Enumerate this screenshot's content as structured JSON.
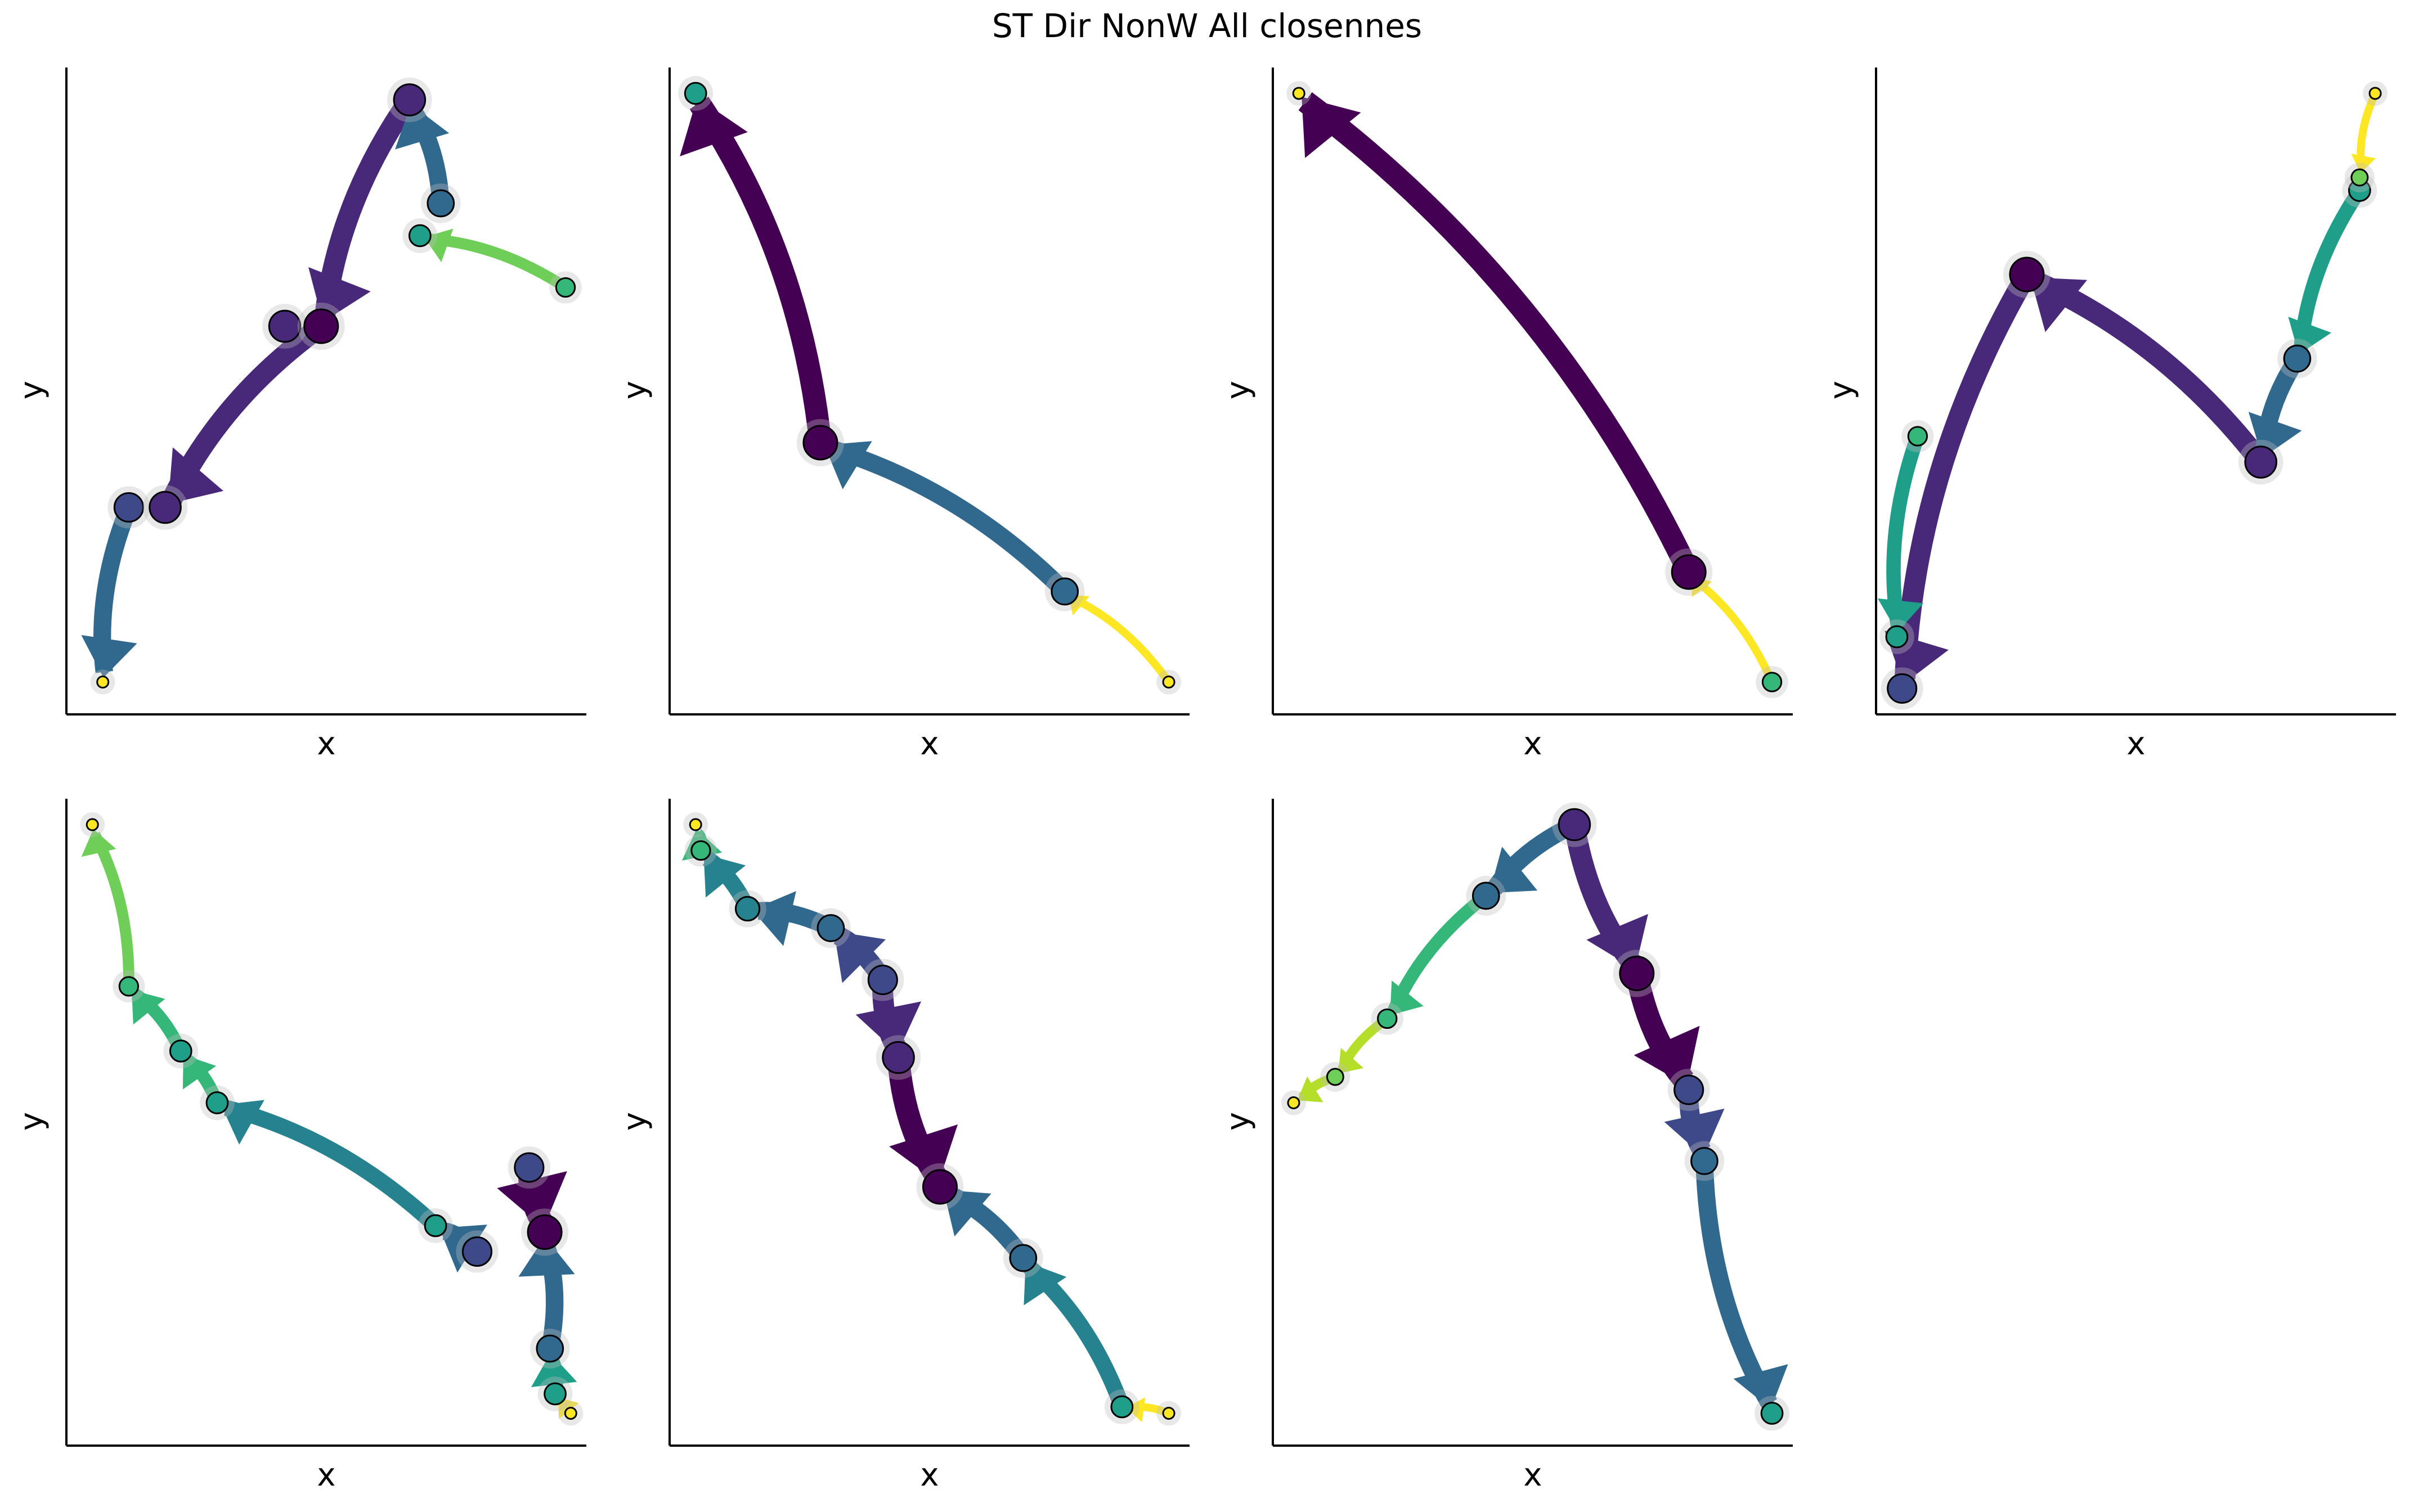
{
  "title": "ST Dir NonW All closennes",
  "colors": {
    "viridis": [
      "#440154",
      "#482878",
      "#3e4989",
      "#31688e",
      "#26828e",
      "#1f9e89",
      "#35b779",
      "#6ece58",
      "#b5de2b",
      "#fde725"
    ],
    "node_stroke": "#000000",
    "halo": "#bdbdbd"
  },
  "chart_data": [
    {
      "type": "scatter",
      "xlabel": "x",
      "ylabel": "y",
      "xlim": [
        0,
        1
      ],
      "ylim": [
        0,
        1
      ],
      "grid": false,
      "points": [
        {
          "x": 0.07,
          "y": 0.05,
          "c": 9
        },
        {
          "x": 0.12,
          "y": 0.32,
          "c": 2
        },
        {
          "x": 0.19,
          "y": 0.32,
          "c": 1
        },
        {
          "x": 0.42,
          "y": 0.6,
          "c": 1
        },
        {
          "x": 0.49,
          "y": 0.6,
          "c": 0
        },
        {
          "x": 0.66,
          "y": 0.95,
          "c": 1
        },
        {
          "x": 0.72,
          "y": 0.79,
          "c": 3
        },
        {
          "x": 0.68,
          "y": 0.74,
          "c": 5
        },
        {
          "x": 0.96,
          "y": 0.66,
          "c": 6
        }
      ],
      "edges": [
        {
          "from": 5,
          "to": 4,
          "c": 1
        },
        {
          "from": 4,
          "to": 2,
          "c": 1
        },
        {
          "from": 1,
          "to": 0,
          "c": 3
        },
        {
          "from": 6,
          "to": 5,
          "c": 3
        },
        {
          "from": 8,
          "to": 7,
          "c": 7
        },
        {
          "from": 0,
          "to": 0,
          "c": 9
        }
      ]
    },
    {
      "type": "scatter",
      "xlabel": "x",
      "ylabel": "y",
      "xlim": [
        0,
        1
      ],
      "ylim": [
        0,
        1
      ],
      "grid": false,
      "points": [
        {
          "x": 0.05,
          "y": 0.96,
          "c": 5
        },
        {
          "x": 0.29,
          "y": 0.42,
          "c": 0
        },
        {
          "x": 0.76,
          "y": 0.19,
          "c": 3
        },
        {
          "x": 0.96,
          "y": 0.05,
          "c": 9
        }
      ],
      "edges": [
        {
          "from": 1,
          "to": 0,
          "c": 0
        },
        {
          "from": 2,
          "to": 1,
          "c": 3
        },
        {
          "from": 3,
          "to": 2,
          "c": 9
        }
      ]
    },
    {
      "type": "scatter",
      "xlabel": "x",
      "ylabel": "y",
      "xlim": [
        0,
        1
      ],
      "ylim": [
        0,
        1
      ],
      "grid": false,
      "points": [
        {
          "x": 0.05,
          "y": 0.96,
          "c": 9
        },
        {
          "x": 0.8,
          "y": 0.22,
          "c": 0
        },
        {
          "x": 0.96,
          "y": 0.05,
          "c": 6
        }
      ],
      "edges": [
        {
          "from": 1,
          "to": 0,
          "c": 0
        },
        {
          "from": 2,
          "to": 1,
          "c": 9
        }
      ]
    },
    {
      "type": "scatter",
      "xlabel": "x",
      "ylabel": "y",
      "xlim": [
        0,
        1
      ],
      "ylim": [
        0,
        1
      ],
      "grid": false,
      "points": [
        {
          "x": 0.05,
          "y": 0.04,
          "c": 2
        },
        {
          "x": 0.04,
          "y": 0.12,
          "c": 5
        },
        {
          "x": 0.08,
          "y": 0.43,
          "c": 6
        },
        {
          "x": 0.29,
          "y": 0.68,
          "c": 0
        },
        {
          "x": 0.74,
          "y": 0.39,
          "c": 1
        },
        {
          "x": 0.81,
          "y": 0.55,
          "c": 3
        },
        {
          "x": 0.93,
          "y": 0.81,
          "c": 5
        },
        {
          "x": 0.93,
          "y": 0.83,
          "c": 7
        },
        {
          "x": 0.96,
          "y": 0.96,
          "c": 9
        }
      ],
      "edges": [
        {
          "from": 3,
          "to": 0,
          "c": 1
        },
        {
          "from": 4,
          "to": 3,
          "c": 1
        },
        {
          "from": 5,
          "to": 4,
          "c": 3
        },
        {
          "from": 6,
          "to": 5,
          "c": 5
        },
        {
          "from": 8,
          "to": 7,
          "c": 9
        },
        {
          "from": 2,
          "to": 1,
          "c": 5
        }
      ]
    },
    {
      "type": "scatter",
      "xlabel": "x",
      "ylabel": "y",
      "xlim": [
        0,
        1
      ],
      "ylim": [
        0,
        1
      ],
      "grid": false,
      "points": [
        {
          "x": 0.05,
          "y": 0.96,
          "c": 9
        },
        {
          "x": 0.12,
          "y": 0.71,
          "c": 6
        },
        {
          "x": 0.22,
          "y": 0.61,
          "c": 5
        },
        {
          "x": 0.29,
          "y": 0.53,
          "c": 5
        },
        {
          "x": 0.71,
          "y": 0.34,
          "c": 5
        },
        {
          "x": 0.79,
          "y": 0.3,
          "c": 2
        },
        {
          "x": 0.89,
          "y": 0.43,
          "c": 2
        },
        {
          "x": 0.92,
          "y": 0.33,
          "c": 0
        },
        {
          "x": 0.93,
          "y": 0.15,
          "c": 3
        },
        {
          "x": 0.94,
          "y": 0.08,
          "c": 5
        },
        {
          "x": 0.97,
          "y": 0.05,
          "c": 9
        }
      ],
      "edges": [
        {
          "from": 1,
          "to": 0,
          "c": 7
        },
        {
          "from": 2,
          "to": 1,
          "c": 6
        },
        {
          "from": 3,
          "to": 2,
          "c": 6
        },
        {
          "from": 4,
          "to": 3,
          "c": 4
        },
        {
          "from": 5,
          "to": 4,
          "c": 3
        },
        {
          "from": 6,
          "to": 7,
          "c": 0
        },
        {
          "from": 8,
          "to": 7,
          "c": 3
        },
        {
          "from": 9,
          "to": 8,
          "c": 5
        },
        {
          "from": 10,
          "to": 9,
          "c": 9
        }
      ]
    },
    {
      "type": "scatter",
      "xlabel": "x",
      "ylabel": "y",
      "xlim": [
        0,
        1
      ],
      "ylim": [
        0,
        1
      ],
      "grid": false,
      "points": [
        {
          "x": 0.05,
          "y": 0.96,
          "c": 9
        },
        {
          "x": 0.06,
          "y": 0.92,
          "c": 6
        },
        {
          "x": 0.15,
          "y": 0.83,
          "c": 4
        },
        {
          "x": 0.31,
          "y": 0.8,
          "c": 3
        },
        {
          "x": 0.41,
          "y": 0.72,
          "c": 2
        },
        {
          "x": 0.44,
          "y": 0.6,
          "c": 1
        },
        {
          "x": 0.52,
          "y": 0.4,
          "c": 0
        },
        {
          "x": 0.68,
          "y": 0.29,
          "c": 3
        },
        {
          "x": 0.87,
          "y": 0.06,
          "c": 5
        },
        {
          "x": 0.96,
          "y": 0.05,
          "c": 9
        }
      ],
      "edges": [
        {
          "from": 1,
          "to": 0,
          "c": 6
        },
        {
          "from": 2,
          "to": 1,
          "c": 4
        },
        {
          "from": 3,
          "to": 2,
          "c": 3
        },
        {
          "from": 4,
          "to": 3,
          "c": 2
        },
        {
          "from": 4,
          "to": 5,
          "c": 1
        },
        {
          "from": 5,
          "to": 6,
          "c": 0
        },
        {
          "from": 7,
          "to": 6,
          "c": 3
        },
        {
          "from": 8,
          "to": 7,
          "c": 4
        },
        {
          "from": 9,
          "to": 8,
          "c": 9
        }
      ]
    },
    {
      "type": "scatter",
      "xlabel": "x",
      "ylabel": "y",
      "xlim": [
        0,
        1
      ],
      "ylim": [
        0,
        1
      ],
      "grid": false,
      "points": [
        {
          "x": 0.04,
          "y": 0.53,
          "c": 9
        },
        {
          "x": 0.12,
          "y": 0.57,
          "c": 7
        },
        {
          "x": 0.22,
          "y": 0.66,
          "c": 6
        },
        {
          "x": 0.41,
          "y": 0.85,
          "c": 3
        },
        {
          "x": 0.58,
          "y": 0.96,
          "c": 1
        },
        {
          "x": 0.7,
          "y": 0.73,
          "c": 0
        },
        {
          "x": 0.8,
          "y": 0.55,
          "c": 2
        },
        {
          "x": 0.83,
          "y": 0.44,
          "c": 3
        },
        {
          "x": 0.96,
          "y": 0.05,
          "c": 5
        }
      ],
      "edges": [
        {
          "from": 1,
          "to": 0,
          "c": 8
        },
        {
          "from": 2,
          "to": 1,
          "c": 8
        },
        {
          "from": 3,
          "to": 2,
          "c": 6
        },
        {
          "from": 4,
          "to": 3,
          "c": 3
        },
        {
          "from": 4,
          "to": 5,
          "c": 1
        },
        {
          "from": 5,
          "to": 6,
          "c": 0
        },
        {
          "from": 6,
          "to": 7,
          "c": 2
        },
        {
          "from": 7,
          "to": 8,
          "c": 3
        }
      ]
    }
  ]
}
